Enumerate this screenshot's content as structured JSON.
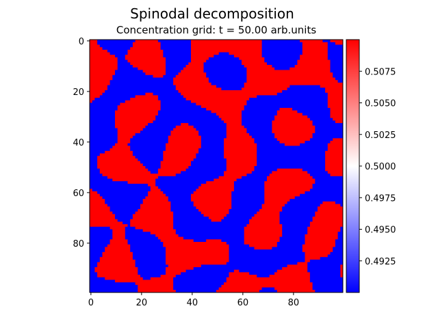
{
  "figure": {
    "title": "Spinodal decomposition",
    "subtitle": "Concentration grid: t = 50.00 arb.units"
  },
  "chart_data": {
    "type": "heatmap",
    "title": "Spinodal decomposition",
    "subtitle": "Concentration grid: t = 50.00 arb.units",
    "grid_size": [
      100,
      100
    ],
    "x_ticks": [
      0,
      20,
      40,
      60,
      80
    ],
    "y_ticks": [
      0,
      20,
      40,
      60,
      80
    ],
    "colorbar": {
      "min": 0.49,
      "max": 0.51,
      "ticks": [
        0.4925,
        0.495,
        0.4975,
        0.5,
        0.5025,
        0.505,
        0.5075
      ],
      "tick_labels": [
        "0.4925",
        "0.4950",
        "0.4975",
        "0.5000",
        "0.5025",
        "0.5050",
        "0.5075"
      ],
      "colormap": "bwr",
      "colors": {
        "low": "#0000ff",
        "mid": "#ffffff",
        "high": "#ff0000"
      },
      "position": "right"
    },
    "grid": false
  }
}
